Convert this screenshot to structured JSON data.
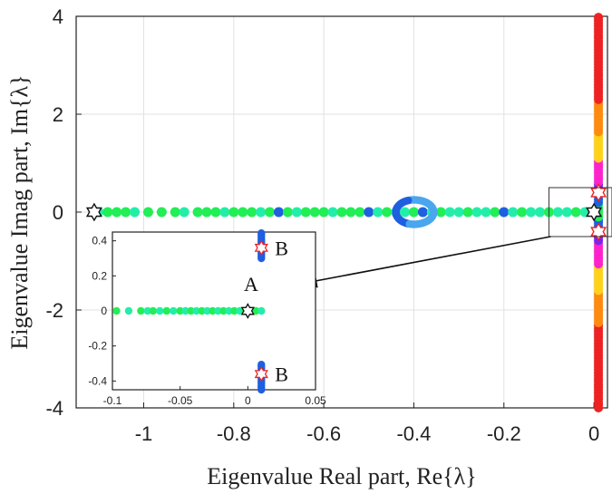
{
  "chart_data": [
    {
      "type": "scatter",
      "xlabel": "Eigenvalue Real part, Re{λ}",
      "ylabel": "Eigenvalue Imag part, Im{λ}",
      "xlim": [
        -1.15,
        0.03
      ],
      "ylim": [
        -4,
        4
      ],
      "xticks": [
        -1,
        -0.8,
        -0.6,
        -0.4,
        -0.2,
        0
      ],
      "xtick_labels": [
        "-1",
        "-0.8",
        "-0.6",
        "-0.4",
        "-0.2",
        "0"
      ],
      "yticks": [
        -4,
        -2,
        0,
        2,
        4
      ],
      "ytick_labels": [
        "-4",
        "-2",
        "0",
        "2",
        "4"
      ],
      "grid": true,
      "colors": {
        "green": "#22ee55",
        "teal": "#22eeaa",
        "blue": "#1f5fe0",
        "light_blue": "#4aa6ee",
        "red": "#ee2222",
        "orange": "#ff8a10",
        "yellow": "#ffd21a",
        "magenta": "#ff22cc",
        "purple": "#7a22ee"
      },
      "series": [
        {
          "marker": "filled-circle",
          "color_by": "eigenvalue",
          "points_real_axis": [
            [
              -1.1,
              0
            ],
            [
              -1.08,
              0
            ],
            [
              -1.06,
              0
            ],
            [
              -1.04,
              0
            ],
            [
              -1.02,
              0
            ],
            [
              -0.99,
              0
            ],
            [
              -0.96,
              0
            ],
            [
              -0.93,
              0
            ],
            [
              -0.91,
              0
            ],
            [
              -0.88,
              0
            ],
            [
              -0.86,
              0
            ],
            [
              -0.84,
              0
            ],
            [
              -0.82,
              0
            ],
            [
              -0.8,
              0
            ],
            [
              -0.78,
              0
            ],
            [
              -0.76,
              0
            ],
            [
              -0.74,
              0
            ],
            [
              -0.72,
              0
            ],
            [
              -0.7,
              0
            ],
            [
              -0.68,
              0
            ],
            [
              -0.66,
              0
            ],
            [
              -0.64,
              0
            ],
            [
              -0.62,
              0
            ],
            [
              -0.6,
              0
            ],
            [
              -0.58,
              0
            ],
            [
              -0.56,
              0
            ],
            [
              -0.54,
              0
            ],
            [
              -0.52,
              0
            ],
            [
              -0.5,
              0
            ],
            [
              -0.48,
              0
            ],
            [
              -0.46,
              0
            ],
            [
              -0.44,
              0
            ],
            [
              -0.42,
              0
            ],
            [
              -0.4,
              0
            ],
            [
              -0.38,
              0
            ],
            [
              -0.36,
              0
            ],
            [
              -0.34,
              0
            ],
            [
              -0.32,
              0
            ],
            [
              -0.3,
              0
            ],
            [
              -0.28,
              0
            ],
            [
              -0.26,
              0
            ],
            [
              -0.24,
              0
            ],
            [
              -0.22,
              0
            ],
            [
              -0.2,
              0
            ],
            [
              -0.18,
              0
            ],
            [
              -0.16,
              0
            ],
            [
              -0.14,
              0
            ],
            [
              -0.12,
              0
            ],
            [
              -0.1,
              0
            ],
            [
              -0.08,
              0
            ],
            [
              -0.06,
              0
            ],
            [
              -0.04,
              0
            ],
            [
              -0.02,
              0
            ],
            [
              0,
              0
            ]
          ],
          "loop": {
            "center": [
              -0.4,
              0
            ],
            "radius_x": 0.04,
            "radius_y": 0.25
          },
          "points_imag_axis": {
            "re": 0.01,
            "im_range": [
              -4,
              4
            ]
          }
        },
        {
          "marker": "open-star",
          "points": [
            [
              -1.11,
              0
            ],
            [
              0,
              0
            ],
            [
              0.01,
              0.4
            ],
            [
              0.01,
              -0.4
            ]
          ],
          "colors": [
            "#111111",
            "#111111",
            "#ee2222",
            "#ee2222"
          ]
        }
      ],
      "annotations": [
        {
          "text": "A",
          "points_to": "inset"
        }
      ]
    },
    {
      "type": "scatter",
      "role": "inset",
      "zoom_box": {
        "x": [
          -0.1,
          0.04
        ],
        "y": [
          -0.5,
          0.5
        ]
      },
      "xlim": [
        -0.1,
        0.05
      ],
      "ylim": [
        -0.45,
        0.45
      ],
      "xticks": [
        -0.1,
        -0.05,
        0,
        0.05
      ],
      "xtick_labels": [
        "-0.1",
        "-0.05",
        "0",
        "0.05"
      ],
      "yticks": [
        -0.4,
        -0.2,
        0,
        0.2,
        0.4
      ],
      "ytick_labels": [
        "-0.4",
        "-0.2",
        "0",
        "0.2",
        "0.4"
      ],
      "grid": false,
      "series": [
        {
          "marker": "filled-circle",
          "points": [
            [
              -0.097,
              0
            ],
            [
              -0.088,
              0
            ],
            [
              -0.079,
              0
            ],
            [
              -0.074,
              0
            ],
            [
              -0.07,
              0
            ],
            [
              -0.065,
              0
            ],
            [
              -0.06,
              0
            ],
            [
              -0.055,
              0
            ],
            [
              -0.05,
              0
            ],
            [
              -0.046,
              0
            ],
            [
              -0.042,
              0
            ],
            [
              -0.038,
              0
            ],
            [
              -0.034,
              0
            ],
            [
              -0.03,
              0
            ],
            [
              -0.026,
              0
            ],
            [
              -0.022,
              0
            ],
            [
              -0.018,
              0
            ],
            [
              -0.014,
              0
            ],
            [
              -0.01,
              0
            ],
            [
              -0.006,
              0
            ],
            [
              -0.002,
              0
            ],
            [
              0.002,
              0
            ],
            [
              0.006,
              0
            ],
            [
              0.01,
              0
            ]
          ]
        },
        {
          "marker": "filled-circle",
          "points_imag_axis": {
            "re": 0.01,
            "im_segments": [
              [
                0.3,
                0.45
              ],
              [
                -0.45,
                -0.3
              ]
            ]
          }
        },
        {
          "marker": "open-star",
          "points": [
            [
              0,
              0
            ],
            [
              0.01,
              0.36
            ],
            [
              0.01,
              -0.36
            ]
          ]
        }
      ],
      "annotations": [
        {
          "text": "B",
          "at": [
            0.02,
            0.36
          ]
        },
        {
          "text": "B",
          "at": [
            0.02,
            -0.36
          ]
        }
      ]
    }
  ]
}
